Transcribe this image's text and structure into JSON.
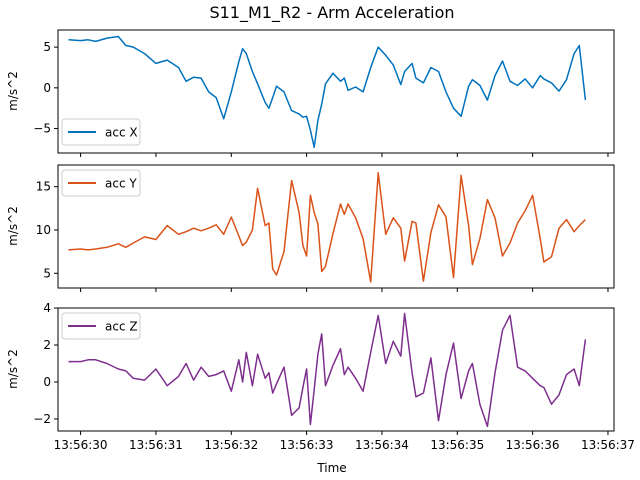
{
  "title": "S11_M1_R2 - Arm Acceleration",
  "xlabel": "Time",
  "x_tick_labels": [
    "13:56:30",
    "13:56:31",
    "13:56:32",
    "13:56:33",
    "13:56:34",
    "13:56:35",
    "13:56:36",
    "13:56:37"
  ],
  "chart_data": {
    "type": "line",
    "title": "S11_M1_R2 - Arm Acceleration",
    "xlabel": "Time",
    "x_unit": "seconds after 13:56:30",
    "xlim": [
      -0.3,
      7.08
    ],
    "x_ticks": [
      0,
      1,
      2,
      3,
      4,
      5,
      6,
      7
    ],
    "x_tick_labels": [
      "13:56:30",
      "13:56:31",
      "13:56:32",
      "13:56:33",
      "13:56:34",
      "13:56:35",
      "13:56:36",
      "13:56:37"
    ],
    "x": [
      -0.16,
      0.0,
      0.1,
      0.2,
      0.35,
      0.5,
      0.6,
      0.7,
      0.85,
      1.0,
      1.15,
      1.3,
      1.4,
      1.5,
      1.6,
      1.7,
      1.8,
      1.9,
      2.0,
      2.1,
      2.15,
      2.2,
      2.28,
      2.35,
      2.45,
      2.5,
      2.55,
      2.6,
      2.7,
      2.8,
      2.9,
      2.95,
      3.0,
      3.05,
      3.1,
      3.15,
      3.2,
      3.25,
      3.35,
      3.45,
      3.5,
      3.55,
      3.65,
      3.75,
      3.85,
      3.95,
      4.05,
      4.15,
      4.25,
      4.3,
      4.4,
      4.45,
      4.55,
      4.65,
      4.75,
      4.85,
      4.95,
      5.05,
      5.15,
      5.2,
      5.3,
      5.4,
      5.5,
      5.6,
      5.7,
      5.8,
      5.9,
      6.0,
      6.1,
      6.15,
      6.25,
      6.35,
      6.45,
      6.55,
      6.62,
      6.7
    ],
    "panels": [
      {
        "series": [
          {
            "name": "acc X",
            "color": "#0072bd",
            "values": [
              5.9,
              5.8,
              5.9,
              5.7,
              6.1,
              6.3,
              5.2,
              5.0,
              4.2,
              3.0,
              3.4,
              2.5,
              0.8,
              1.3,
              1.2,
              -0.5,
              -1.2,
              -3.8,
              -0.5,
              3.2,
              4.8,
              4.2,
              2.0,
              0.5,
              -1.8,
              -2.5,
              -1.2,
              0.2,
              -0.5,
              -2.8,
              -3.2,
              -3.6,
              -3.5,
              -5.2,
              -7.3,
              -4.0,
              -2.0,
              0.5,
              1.8,
              0.8,
              1.2,
              -0.3,
              0.1,
              -0.5,
              2.5,
              5.0,
              4.0,
              2.8,
              0.4,
              2.0,
              3.0,
              1.2,
              0.6,
              2.5,
              2.0,
              -0.5,
              -2.5,
              -3.5,
              0.2,
              1.0,
              0.3,
              -1.5,
              1.5,
              3.3,
              0.8,
              0.3,
              1.1,
              0.0,
              1.5,
              1.1,
              0.6,
              -0.4,
              1.0,
              4.2,
              5.2,
              -1.5
            ]
          }
        ],
        "ylabel": "m/s^2",
        "ylim": [
          -8.0,
          7.1
        ],
        "y_ticks": [
          -5,
          0,
          5
        ],
        "y_tick_labels": [
          "−5",
          "0",
          "5"
        ],
        "legend": {
          "position": "lower-left"
        }
      },
      {
        "series": [
          {
            "name": "acc Y",
            "color": "#d95319",
            "values": [
              7.7,
              7.8,
              7.7,
              7.8,
              8.0,
              8.4,
              8.0,
              8.5,
              9.2,
              8.9,
              10.5,
              9.5,
              9.8,
              10.2,
              9.9,
              10.2,
              10.6,
              9.5,
              11.5,
              9.3,
              8.2,
              8.6,
              10.0,
              14.8,
              10.5,
              10.8,
              5.5,
              4.8,
              7.5,
              15.7,
              12.0,
              8.2,
              7.0,
              14.0,
              12.0,
              10.7,
              5.2,
              5.8,
              9.6,
              13.0,
              11.8,
              13.0,
              11.4,
              9.0,
              4.0,
              16.6,
              9.5,
              11.4,
              10.2,
              6.4,
              11.0,
              10.8,
              4.1,
              9.7,
              12.9,
              11.5,
              4.5,
              16.3,
              10.5,
              6.0,
              9.0,
              13.5,
              11.4,
              7.0,
              8.5,
              10.8,
              12.2,
              14.0,
              9.0,
              6.3,
              6.9,
              10.2,
              11.2,
              9.8,
              10.5,
              11.2
            ]
          }
        ],
        "ylabel": "m/s^2",
        "ylim": [
          3.3,
          17.5
        ],
        "y_ticks": [
          5,
          10,
          15
        ],
        "y_tick_labels": [
          "5",
          "10",
          "15"
        ],
        "legend": {
          "position": "upper-left"
        }
      },
      {
        "series": [
          {
            "name": "acc Z",
            "color": "#7e2f8e",
            "values": [
              1.1,
              1.1,
              1.2,
              1.2,
              1.0,
              0.7,
              0.6,
              0.2,
              0.1,
              0.7,
              -0.2,
              0.3,
              1.0,
              0.1,
              0.8,
              0.3,
              0.4,
              0.6,
              -0.5,
              1.2,
              0.0,
              1.6,
              -0.2,
              1.5,
              0.2,
              0.5,
              -0.6,
              -0.1,
              0.8,
              -1.8,
              -1.4,
              -0.3,
              0.7,
              -2.3,
              -0.4,
              1.5,
              2.6,
              -0.2,
              0.9,
              1.8,
              0.4,
              0.8,
              0.2,
              -0.5,
              1.6,
              3.6,
              1.0,
              2.2,
              1.4,
              3.7,
              0.5,
              -0.8,
              -0.6,
              1.3,
              -2.1,
              0.4,
              2.1,
              -0.9,
              0.6,
              1.0,
              -1.2,
              -2.4,
              0.5,
              2.8,
              3.6,
              0.8,
              0.6,
              0.2,
              -0.2,
              -0.3,
              -1.2,
              -0.7,
              0.4,
              0.7,
              -0.2,
              2.3
            ]
          }
        ],
        "ylabel": "m/s^2",
        "ylim": [
          -2.65,
          4.0
        ],
        "y_ticks": [
          -2,
          0,
          2,
          4
        ],
        "y_tick_labels": [
          "−2",
          "0",
          "2",
          "4"
        ],
        "legend": {
          "position": "upper-left"
        }
      }
    ]
  }
}
